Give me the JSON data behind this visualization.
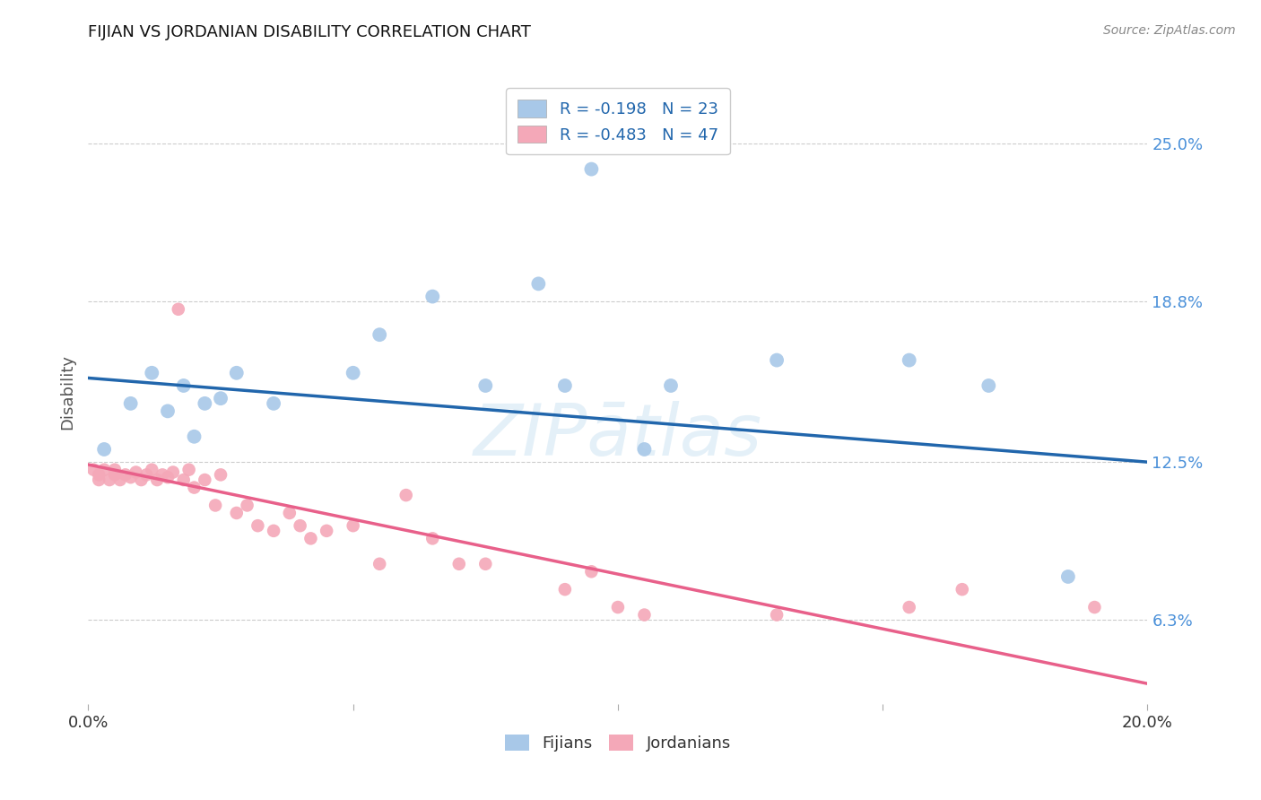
{
  "title": "FIJIAN VS JORDANIAN DISABILITY CORRELATION CHART",
  "source": "Source: ZipAtlas.com",
  "ylabel": "Disability",
  "xlim": [
    0.0,
    0.2
  ],
  "ylim": [
    0.03,
    0.275
  ],
  "yticks": [
    0.063,
    0.125,
    0.188,
    0.25
  ],
  "ytick_labels": [
    "6.3%",
    "12.5%",
    "18.8%",
    "25.0%"
  ],
  "xticks": [
    0.0,
    0.05,
    0.1,
    0.15,
    0.2
  ],
  "xtick_labels": [
    "0.0%",
    "",
    "",
    "",
    "20.0%"
  ],
  "fijian_color": "#a8c8e8",
  "jordanian_color": "#f4a8b8",
  "fijian_line_color": "#2166ac",
  "jordanian_line_color": "#e8608a",
  "background_color": "#ffffff",
  "grid_color": "#cccccc",
  "legend_R_fijian": "R = -0.198",
  "legend_N_fijian": "N = 23",
  "legend_R_jordanian": "R = -0.483",
  "legend_N_jordanian": "N = 47",
  "fijian_x": [
    0.003,
    0.008,
    0.012,
    0.015,
    0.018,
    0.02,
    0.022,
    0.025,
    0.028,
    0.035,
    0.05,
    0.055,
    0.065,
    0.075,
    0.085,
    0.09,
    0.095,
    0.105,
    0.11,
    0.13,
    0.155,
    0.17,
    0.185
  ],
  "fijian_y": [
    0.13,
    0.148,
    0.16,
    0.145,
    0.155,
    0.135,
    0.148,
    0.15,
    0.16,
    0.148,
    0.16,
    0.175,
    0.19,
    0.155,
    0.195,
    0.155,
    0.24,
    0.13,
    0.155,
    0.165,
    0.165,
    0.155,
    0.08
  ],
  "jordanian_x": [
    0.001,
    0.002,
    0.002,
    0.003,
    0.004,
    0.005,
    0.005,
    0.006,
    0.007,
    0.008,
    0.009,
    0.01,
    0.011,
    0.012,
    0.013,
    0.014,
    0.015,
    0.016,
    0.017,
    0.018,
    0.019,
    0.02,
    0.022,
    0.024,
    0.025,
    0.028,
    0.03,
    0.032,
    0.035,
    0.038,
    0.04,
    0.042,
    0.045,
    0.05,
    0.055,
    0.06,
    0.065,
    0.07,
    0.075,
    0.09,
    0.095,
    0.1,
    0.105,
    0.13,
    0.155,
    0.165,
    0.19
  ],
  "jordanian_y": [
    0.122,
    0.12,
    0.118,
    0.122,
    0.118,
    0.12,
    0.122,
    0.118,
    0.12,
    0.119,
    0.121,
    0.118,
    0.12,
    0.122,
    0.118,
    0.12,
    0.119,
    0.121,
    0.185,
    0.118,
    0.122,
    0.115,
    0.118,
    0.108,
    0.12,
    0.105,
    0.108,
    0.1,
    0.098,
    0.105,
    0.1,
    0.095,
    0.098,
    0.1,
    0.085,
    0.112,
    0.095,
    0.085,
    0.085,
    0.075,
    0.082,
    0.068,
    0.065,
    0.065,
    0.068,
    0.075,
    0.068
  ],
  "fijian_trend_x": [
    0.0,
    0.2
  ],
  "fijian_trend_y": [
    0.158,
    0.125
  ],
  "jordanian_trend_x": [
    0.0,
    0.2
  ],
  "jordanian_trend_y": [
    0.124,
    0.038
  ]
}
